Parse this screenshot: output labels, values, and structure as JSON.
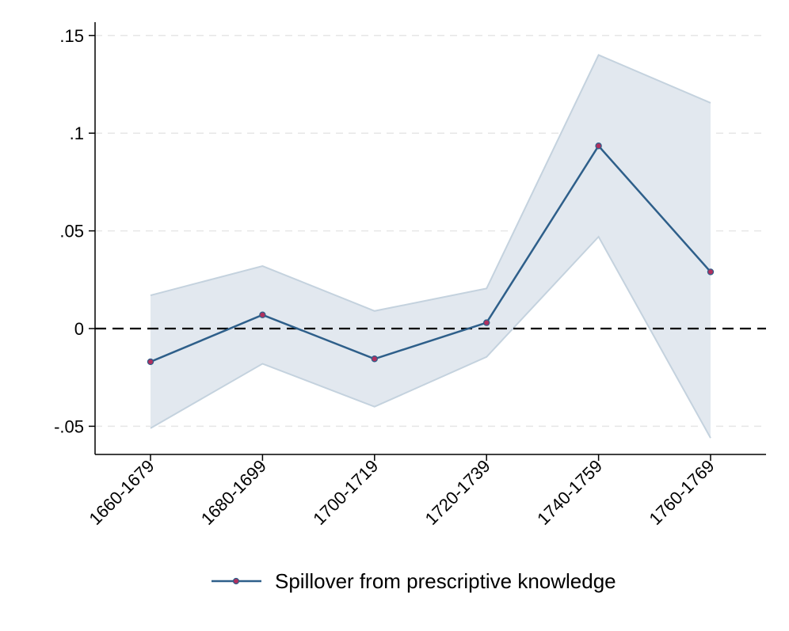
{
  "chart_data": {
    "type": "line",
    "categories": [
      "1660-1679",
      "1680-1699",
      "1700-1719",
      "1720-1739",
      "1740-1759",
      "1760-1769"
    ],
    "series": [
      {
        "name": "Spillover from prescriptive knowledge",
        "values": [
          -0.017,
          0.007,
          -0.0155,
          0.003,
          0.0935,
          0.029
        ],
        "ci_lower": [
          -0.051,
          -0.018,
          -0.04,
          -0.0145,
          0.047,
          -0.056
        ],
        "ci_upper": [
          0.017,
          0.032,
          0.009,
          0.0205,
          0.14,
          0.1155
        ]
      }
    ],
    "yticks": [
      -0.05,
      0,
      0.05,
      0.1,
      0.15
    ],
    "ytick_labels": [
      "-.05",
      "0",
      ".05",
      ".1",
      ".15"
    ],
    "ylim": [
      -0.064,
      0.157
    ],
    "reference_line": 0,
    "grid": true,
    "legend_position": "bottom",
    "title": "",
    "xlabel": "",
    "ylabel": "",
    "colors": {
      "line": "#2e5f8a",
      "marker_fill": "#b0305e",
      "ci_fill": "#e2e8ef",
      "ci_edge": "#c4d2de",
      "grid": "#e6e6e6",
      "zero_line": "#000000"
    }
  }
}
